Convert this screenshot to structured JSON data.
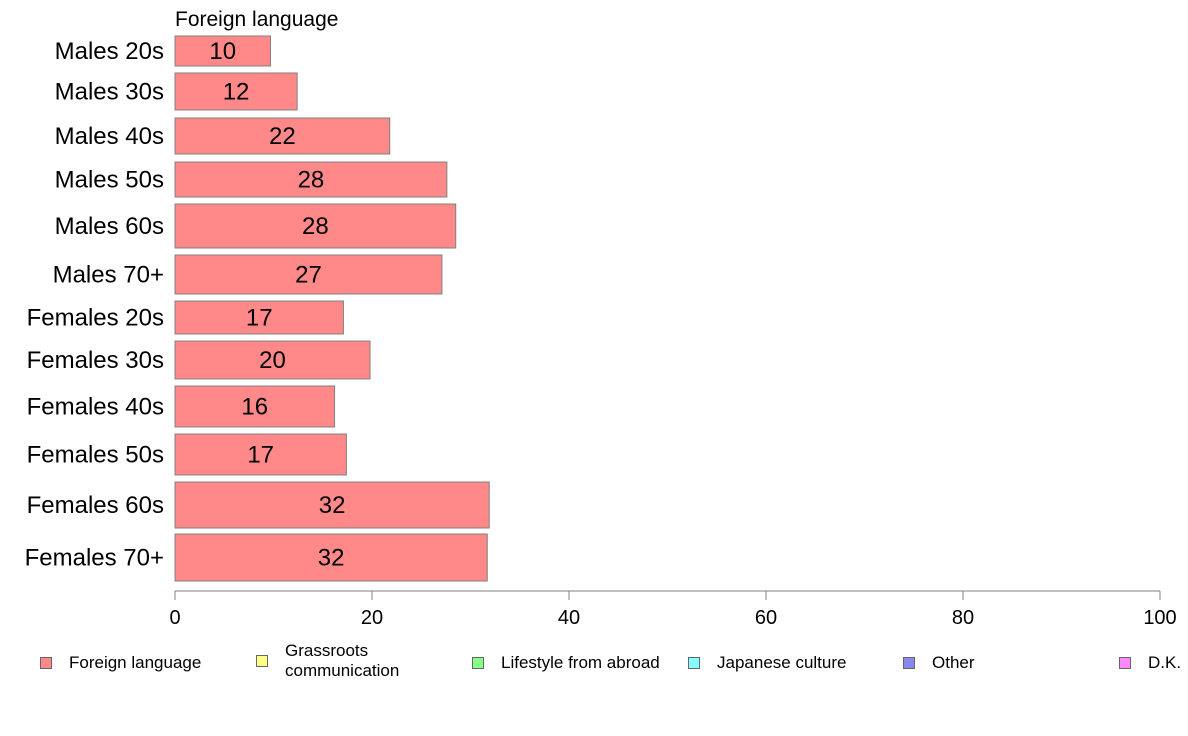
{
  "chart_data": {
    "type": "bar",
    "orientation": "horizontal",
    "title": "Foreign language",
    "categories": [
      "Males 20s",
      "Males 30s",
      "Males 40s",
      "Males 50s",
      "Males 60s",
      "Males 70+",
      "Females 20s",
      "Females 30s",
      "Females 40s",
      "Females 50s",
      "Females 60s",
      "Females 70+"
    ],
    "series": [
      {
        "name": "Foreign language",
        "color": "#ff8888",
        "values": [
          9.7,
          12.4,
          21.8,
          27.6,
          28.5,
          27.1,
          17.1,
          19.8,
          16.2,
          17.4,
          31.9,
          31.7
        ],
        "labels": [
          "10",
          "12",
          "22",
          "28",
          "28",
          "27",
          "17",
          "20",
          "16",
          "17",
          "32",
          "32"
        ]
      }
    ],
    "xlim": [
      0,
      100
    ],
    "xticks": [
      "0",
      "20",
      "40",
      "60",
      "80",
      "100"
    ],
    "xlabel": "",
    "ylabel": "",
    "grid": false,
    "legend_position": "bottom"
  },
  "legend": [
    {
      "label": "Foreign language",
      "color": "#ff8888"
    },
    {
      "label": "Grassroots communication",
      "color": "#ffff88"
    },
    {
      "label": "Lifestyle from abroad",
      "color": "#88ff88"
    },
    {
      "label": "Japanese culture",
      "color": "#88ffff"
    },
    {
      "label": "Other",
      "color": "#8888ee"
    },
    {
      "label": "D.K.",
      "color": "#ff88ff"
    }
  ]
}
